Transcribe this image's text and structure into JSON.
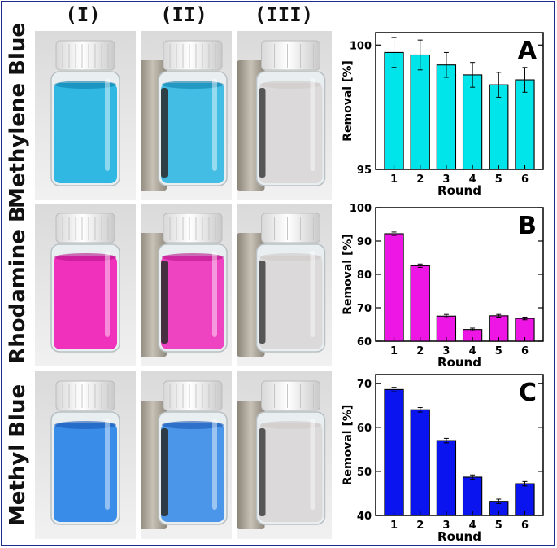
{
  "columns": [
    "(I)",
    "(II)",
    "(III)"
  ],
  "rows": [
    {
      "label": "Methylene Blue",
      "dye_color": "#26b4e0",
      "dye_dark": "#0d7fae"
    },
    {
      "label": "Rhodamine B",
      "dye_color": "#f026b8",
      "dye_dark": "#b8148a"
    },
    {
      "label": "Methyl Blue",
      "dye_color": "#2f86e6",
      "dye_dark": "#1a58b8"
    }
  ],
  "chart_data": [
    {
      "type": "bar",
      "panel_label": "A",
      "categories": [
        "1",
        "2",
        "3",
        "4",
        "5",
        "6"
      ],
      "values": [
        99.7,
        99.6,
        99.2,
        98.8,
        98.4,
        98.6
      ],
      "errors": [
        0.6,
        0.6,
        0.5,
        0.5,
        0.5,
        0.5
      ],
      "xlabel": "Round",
      "ylabel": "Removal [%]",
      "ylim": [
        95,
        100.5
      ],
      "yticks": [
        95,
        100
      ],
      "bar_color": "#00e5ea"
    },
    {
      "type": "bar",
      "panel_label": "B",
      "categories": [
        "1",
        "2",
        "3",
        "4",
        "5",
        "6"
      ],
      "values": [
        92.2,
        82.6,
        67.5,
        63.5,
        67.6,
        66.8
      ],
      "errors": [
        0.5,
        0.5,
        0.5,
        0.4,
        0.4,
        0.4
      ],
      "xlabel": "Round",
      "ylabel": "Removal [%]",
      "ylim": [
        60,
        100
      ],
      "yticks": [
        60,
        70,
        80,
        90,
        100
      ],
      "bar_color": "#ee16e4"
    },
    {
      "type": "bar",
      "panel_label": "C",
      "categories": [
        "1",
        "2",
        "3",
        "4",
        "5",
        "6"
      ],
      "values": [
        68.6,
        64.0,
        57.0,
        48.7,
        43.2,
        47.2
      ],
      "errors": [
        0.5,
        0.5,
        0.5,
        0.5,
        0.5,
        0.5
      ],
      "xlabel": "Round",
      "ylabel": "Removal [%]",
      "ylim": [
        40,
        72
      ],
      "yticks": [
        40,
        50,
        60,
        70
      ],
      "bar_color": "#0a14ee"
    }
  ]
}
